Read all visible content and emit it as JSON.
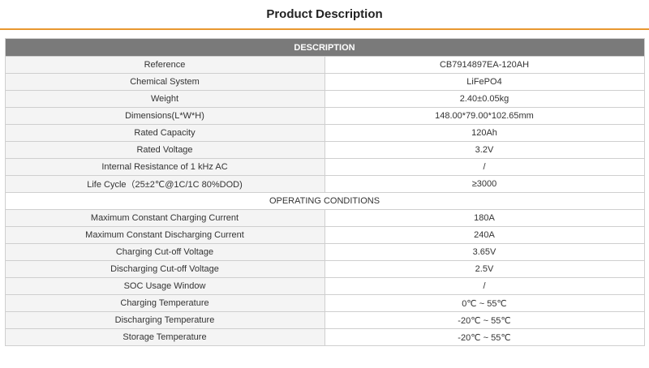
{
  "page": {
    "title": "Product Description"
  },
  "sections": {
    "description": {
      "heading": "DESCRIPTION",
      "rows": [
        {
          "label": "Reference",
          "value": "CB7914897EA-120AH"
        },
        {
          "label": "Chemical System",
          "value": "LiFePO4"
        },
        {
          "label": "Weight",
          "value": "2.40±0.05kg"
        },
        {
          "label": "Dimensions(L*W*H)",
          "value": "148.00*79.00*102.65mm"
        },
        {
          "label": "Rated Capacity",
          "value": "120Ah"
        },
        {
          "label": "Rated Voltage",
          "value": "3.2V"
        },
        {
          "label": "Internal Resistance of 1 kHz AC",
          "value": "/"
        },
        {
          "label": "Life Cycle（25±2℃@1C/1C 80%DOD)",
          "value": "≥3000"
        }
      ]
    },
    "operating": {
      "heading": "OPERATING CONDITIONS",
      "rows": [
        {
          "label": "Maximum Constant Charging Current",
          "value": "180A"
        },
        {
          "label": "Maximum Constant Discharging Current",
          "value": "240A"
        },
        {
          "label": "Charging Cut-off Voltage",
          "value": "3.65V"
        },
        {
          "label": "Discharging Cut-off Voltage",
          "value": "2.5V"
        },
        {
          "label": "SOC Usage Window",
          "value": "/"
        },
        {
          "label": "Charging Temperature",
          "value": "0℃ ~ 55℃"
        },
        {
          "label": "Discharging Temperature",
          "value": "-20℃ ~ 55℃"
        },
        {
          "label": "Storage Temperature",
          "value": "-20℃ ~ 55℃"
        }
      ]
    }
  },
  "colors": {
    "accent": "#e8972f",
    "section_header_bg": "#7a7a7a"
  }
}
